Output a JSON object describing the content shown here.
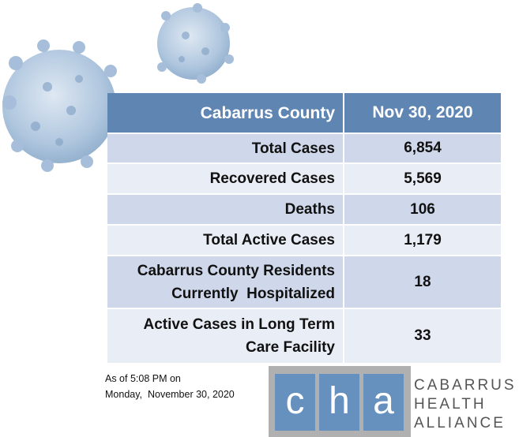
{
  "table": {
    "header": [
      "Cabarrus County",
      "Nov 30, 2020"
    ],
    "rows": [
      [
        "Total Cases",
        "6,854"
      ],
      [
        "Recovered Cases",
        "5,569"
      ],
      [
        "Deaths",
        "106"
      ],
      [
        "Total Active Cases",
        "1,179"
      ],
      [
        [
          "Cabarrus County Residents",
          "Currently  Hospitalized"
        ],
        "18"
      ],
      [
        [
          "Active Cases in Long Term",
          "Care Facility"
        ],
        "33"
      ]
    ]
  },
  "footer": [
    "As of 5:08 PM on",
    "Monday,  November 30, 2020"
  ],
  "logo": {
    "letters": [
      "c",
      "h",
      "a"
    ],
    "words": [
      "CABARRUS",
      "HEALTH",
      "ALLIANCE"
    ]
  }
}
